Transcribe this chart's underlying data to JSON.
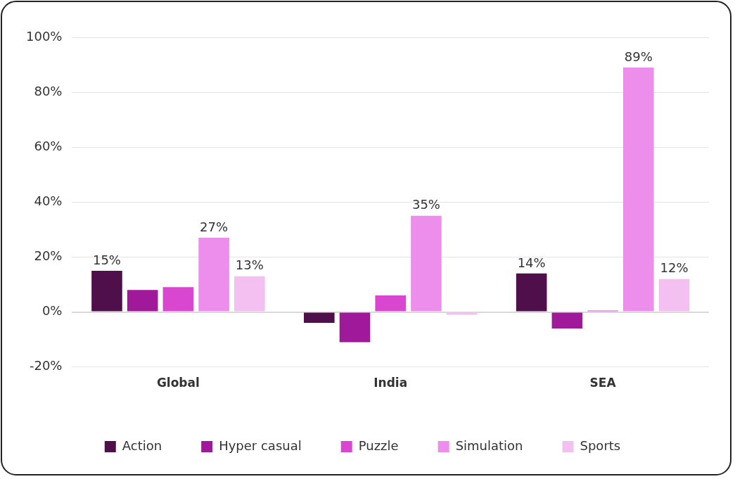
{
  "chart_data": {
    "type": "bar",
    "categories": [
      "Global",
      "India",
      "SEA"
    ],
    "series": [
      {
        "name": "Action",
        "color": "#4f0f4a",
        "values": [
          15,
          -4,
          14
        ],
        "value_labels": [
          "15%",
          null,
          "14%"
        ]
      },
      {
        "name": "Hyper casual",
        "color": "#a0199a",
        "values": [
          8,
          -11,
          -6
        ],
        "value_labels": [
          null,
          null,
          null
        ]
      },
      {
        "name": "Puzzle",
        "color": "#d946d0",
        "values": [
          9,
          6,
          0.5
        ],
        "value_labels": [
          null,
          null,
          null
        ]
      },
      {
        "name": "Simulation",
        "color": "#ee8eec",
        "values": [
          27,
          35,
          89
        ],
        "value_labels": [
          "27%",
          "35%",
          "89%"
        ]
      },
      {
        "name": "Sports",
        "color": "#f4c0f2",
        "values": [
          13,
          -1,
          12
        ],
        "value_labels": [
          "13%",
          null,
          "12%"
        ]
      }
    ],
    "ylim": [
      -20,
      100
    ],
    "yticks": [
      {
        "value": -20,
        "label": "-20%"
      },
      {
        "value": 0,
        "label": "0%"
      },
      {
        "value": 20,
        "label": "20%"
      },
      {
        "value": 40,
        "label": "40%"
      },
      {
        "value": 60,
        "label": "60%"
      },
      {
        "value": 80,
        "label": "80%"
      },
      {
        "value": 100,
        "label": "100%"
      }
    ],
    "grid": "y",
    "legend": "bottom"
  }
}
